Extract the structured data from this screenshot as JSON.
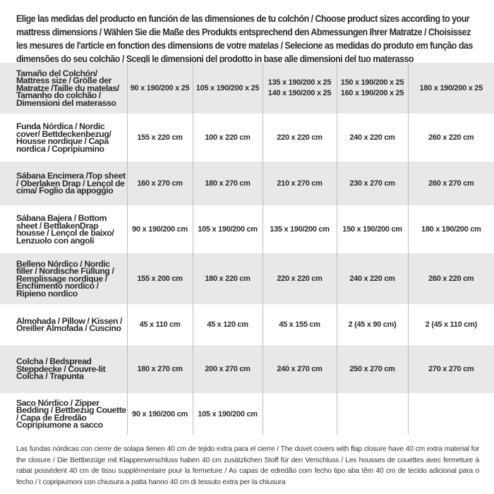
{
  "intro": "Elige las medidas del producto en función de las dimensiones de tu colchón / Choose product sizes according to your mattress dimensions / Wählen Sie die Maße des Produkts entsprechend den Abmessungen Ihrer Matratze / Choisissez les mesures de l'article en fonction des dimensions de votre matelas / Selecione as medidas do produto em função das dimensões do seu colchão / Scegli le dimensioni del prodotto in base alle dimensioni del tuo materasso",
  "table": {
    "header": {
      "label": "Tamaño del Colchón/ Mattress size / Größe der Matratze /Taille du matelas/ Tamanho do colchão / Dimensioni del materasso",
      "sizes": [
        [
          "90 x 190/200 x 25"
        ],
        [
          "105 x 190/200 x 25"
        ],
        [
          "135 x 190/200 x 25",
          "140 x 190/200 x 25"
        ],
        [
          "150 x 190/200 x 25",
          "160 x 190/200 x 25"
        ],
        [
          "180 x 190/200 x 25"
        ]
      ]
    },
    "rows": [
      {
        "label": "Funda Nórdica / Nordic cover/ Bettdeckenbezug/ Housse nordique / Capa nordica / Copripiumino",
        "values": [
          "155 x 220 cm",
          "100 x 220 cm",
          "220 x 220 cm",
          "240 x 220 cm",
          "260 x 220 cm"
        ]
      },
      {
        "label": "Sábana Encimera /Top sheet / Oberlaken Drap / Lençol de cima/ Foglio da appoggio",
        "values": [
          "160 x 270 cm",
          "180 x 270 cm",
          "210 x 270 cm",
          "230 x 270 cm",
          "260 x 270 cm"
        ]
      },
      {
        "label": "Sábana Bajera / Bottom sheet / BettlakenDrap housse / Lençol de baixo/ Lenzuolo con angoli",
        "values": [
          "90 x 190/200 cm",
          "105 x 190/200 cm",
          "135 x 190/200 cm",
          "150 x 190/200 cm",
          "180 x 190/200 cm"
        ]
      },
      {
        "label": "Belleno Nórdico / Nordic filler / Nordische Füllung / Remplissage nordique / Enchimento nordico / Ripieno nordico",
        "values": [
          "155 x 200 cm",
          "180 x 220 cm",
          "220 x 220 cm",
          "240 x 220 cm",
          "260 x 220 cm"
        ]
      },
      {
        "label": "Almohada / Pillow / Kissen / Oreiller Almofada / Cuscino",
        "values": [
          "45 x 110 cm",
          "45 x 120 cm",
          "45 x 155 cm",
          "2 (45 x 90 cm)",
          "2 (45 x 110 cm)"
        ]
      },
      {
        "label": "Colcha / Bedspread Steppdecke / Couvre-lit Colcha / Trapunta",
        "values": [
          "180 x 270 cm",
          "200 x 270 cm",
          "240 x 270 cm",
          "250 x 270 cm",
          "270 x 270 cm"
        ]
      },
      {
        "label": "Saco Nórdico / Zipper Bedding / Bettbezug Couette / Capa de Edredão Copripiumone a sacco",
        "values": [
          "90 x 190/200 cm",
          "105 x 190/200 cm",
          "",
          "",
          ""
        ]
      }
    ]
  },
  "footnote": "Las fundas nórdicas con cierre de solapa tienen 40 cm de tejido extra para el cierre / The duvet covers with flap closure have 40 cm extra material for the closure / Die Bettbezüge mit Klappenverschluss haben 40 cm zusätzlichen Stoff für den Verschluss / Les housses de couettes avec fermeture à rabat possèdent 40 cm de tissu supplémentaire pour la fermeture / As capas de edredão com fecho tipo aba têm 40 cm de tecido adicional para o fecho / I copripiumoni con chiusura a patta hanno 40 cm di tessuto extra per la chiusura",
  "colors": {
    "row_shade": "#e8e8e9",
    "divider": "#bdbdbd",
    "text": "#2a2a2a"
  }
}
